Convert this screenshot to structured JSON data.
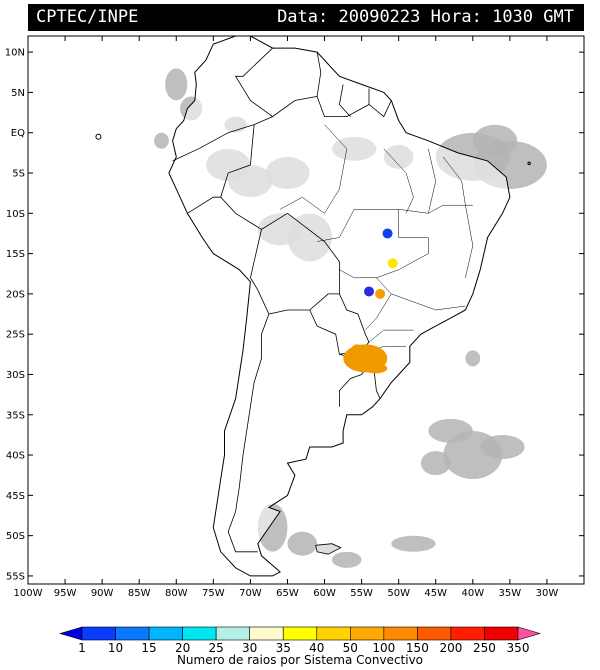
{
  "header": {
    "source": "CPTEC/INPE",
    "date_label": "Data:",
    "date": "20090223",
    "time_label": "Hora:",
    "time": "1030",
    "tz": "GMT"
  },
  "map": {
    "lon_range": [
      -100,
      -25
    ],
    "lat_range": [
      -56,
      12
    ],
    "lat_ticks": [
      {
        "lat": 10,
        "label": "10N"
      },
      {
        "lat": 5,
        "label": "5N"
      },
      {
        "lat": 0,
        "label": "EQ"
      },
      {
        "lat": -5,
        "label": "5S"
      },
      {
        "lat": -10,
        "label": "10S"
      },
      {
        "lat": -15,
        "label": "15S"
      },
      {
        "lat": -20,
        "label": "20S"
      },
      {
        "lat": -25,
        "label": "25S"
      },
      {
        "lat": -30,
        "label": "30S"
      },
      {
        "lat": -35,
        "label": "35S"
      },
      {
        "lat": -40,
        "label": "40S"
      },
      {
        "lat": -45,
        "label": "45S"
      },
      {
        "lat": -50,
        "label": "50S"
      },
      {
        "lat": -55,
        "label": "55S"
      }
    ],
    "lon_ticks": [
      {
        "lon": -100,
        "label": "100W"
      },
      {
        "lon": -95,
        "label": "95W"
      },
      {
        "lon": -90,
        "label": "90W"
      },
      {
        "lon": -85,
        "label": "85W"
      },
      {
        "lon": -80,
        "label": "80W"
      },
      {
        "lon": -75,
        "label": "75W"
      },
      {
        "lon": -70,
        "label": "70W"
      },
      {
        "lon": -65,
        "label": "65W"
      },
      {
        "lon": -60,
        "label": "60W"
      },
      {
        "lon": -55,
        "label": "55W"
      },
      {
        "lon": -50,
        "label": "50W"
      },
      {
        "lon": -45,
        "label": "45W"
      },
      {
        "lon": -40,
        "label": "40W"
      },
      {
        "lon": -35,
        "label": "35W"
      },
      {
        "lon": -30,
        "label": "30W"
      }
    ],
    "cloud_color": "#b4b4b4",
    "convective_systems": [
      {
        "lon": -51.5,
        "lat": -12.5,
        "color": "#1040f0"
      },
      {
        "lon": -50.8,
        "lat": -16.2,
        "color": "#ffe400"
      },
      {
        "lon": -54,
        "lat": -19.7,
        "color": "#2a2ae0"
      },
      {
        "lon": -52.5,
        "lat": -20,
        "color": "#f0a000"
      },
      {
        "lon": -54.5,
        "lat": -28,
        "color": "#f09a00"
      }
    ]
  },
  "colorbar": {
    "labels": [
      "1",
      "10",
      "15",
      "20",
      "25",
      "30",
      "35",
      "40",
      "50",
      "100",
      "150",
      "200",
      "250",
      "350"
    ],
    "colors": [
      "#0000e0",
      "#0a3cff",
      "#0a78ff",
      "#00b4ff",
      "#00e6f0",
      "#b4f0e6",
      "#fffacd",
      "#ffff00",
      "#ffd200",
      "#ffaa00",
      "#ff8c00",
      "#ff5a00",
      "#ff1e00",
      "#f00000",
      "#ff50a0"
    ],
    "title": "Numero de raios por Sistema Convectivo"
  }
}
